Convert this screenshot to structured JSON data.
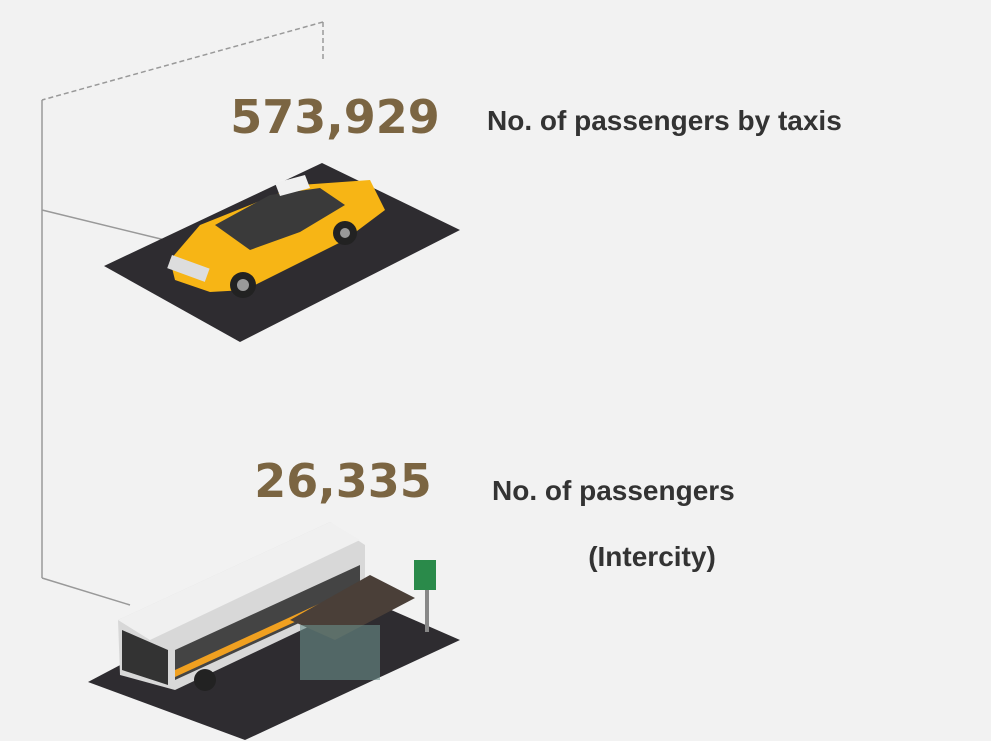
{
  "items": [
    {
      "value": "573,929",
      "label": "No. of passengers by taxis"
    },
    {
      "value": "26,335",
      "label": "No. of passengers",
      "sublabel": "(Intercity)"
    }
  ]
}
